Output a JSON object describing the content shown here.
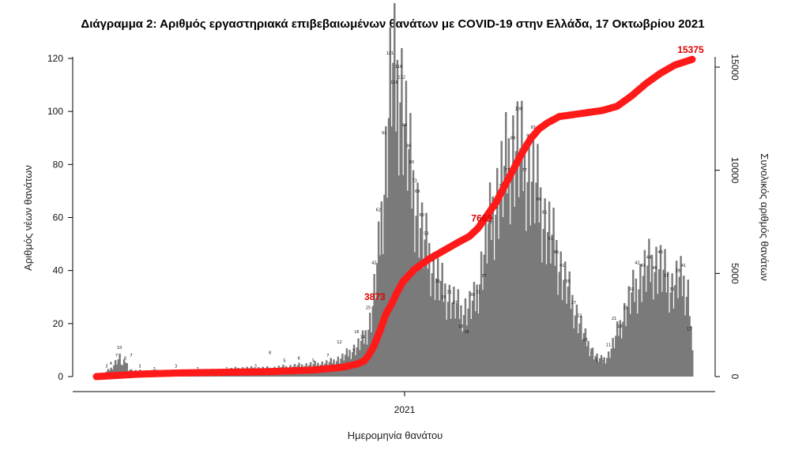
{
  "chart_data": {
    "type": "bar+line",
    "title": "Διάγραμμα 2: Αριθμός εργαστηριακά επιβεβαιωμένων θανάτων με COVID-19 στην Ελλάδα, 17 Οκτωβρίου 2021",
    "xlabel": "Ημερομηνία θανάτου",
    "ylabel": "Αριθμός νέων θανάτων",
    "y2label": "Συνολικός αριθμός θανάτων",
    "x_tick_labels": [
      "2021"
    ],
    "ylim": [
      0,
      125
    ],
    "y_ticks": [
      0,
      20,
      40,
      60,
      80,
      100,
      120
    ],
    "y2lim": [
      0,
      15500
    ],
    "y2_ticks": [
      0,
      5000,
      10000,
      15000
    ],
    "bar_color": "#7a7a7a",
    "line_color": "#ff1a1a",
    "daily_anchors": [
      [
        0,
        1
      ],
      [
        5,
        1
      ],
      [
        10,
        3
      ],
      [
        14,
        6
      ],
      [
        16,
        7
      ],
      [
        18,
        4
      ],
      [
        20,
        6
      ],
      [
        22,
        3
      ],
      [
        25,
        2
      ],
      [
        30,
        2
      ],
      [
        40,
        2
      ],
      [
        60,
        2
      ],
      [
        80,
        2
      ],
      [
        100,
        3
      ],
      [
        120,
        3
      ],
      [
        140,
        4
      ],
      [
        160,
        5
      ],
      [
        170,
        7
      ],
      [
        180,
        11
      ],
      [
        185,
        14
      ],
      [
        190,
        22
      ],
      [
        195,
        45
      ],
      [
        200,
        80
      ],
      [
        204,
        115
      ],
      [
        207,
        105
      ],
      [
        210,
        110
      ],
      [
        214,
        90
      ],
      [
        218,
        72
      ],
      [
        222,
        62
      ],
      [
        226,
        50
      ],
      [
        230,
        45
      ],
      [
        234,
        38
      ],
      [
        240,
        32
      ],
      [
        246,
        28
      ],
      [
        252,
        24
      ],
      [
        258,
        26
      ],
      [
        262,
        28
      ],
      [
        266,
        40
      ],
      [
        270,
        52
      ],
      [
        276,
        65
      ],
      [
        282,
        75
      ],
      [
        286,
        82
      ],
      [
        290,
        85
      ],
      [
        294,
        80
      ],
      [
        298,
        78
      ],
      [
        302,
        72
      ],
      [
        306,
        66
      ],
      [
        310,
        57
      ],
      [
        314,
        52
      ],
      [
        318,
        46
      ],
      [
        322,
        38
      ],
      [
        326,
        32
      ],
      [
        330,
        26
      ],
      [
        334,
        20
      ],
      [
        338,
        14
      ],
      [
        342,
        10
      ],
      [
        346,
        7
      ],
      [
        350,
        6
      ],
      [
        354,
        8
      ],
      [
        358,
        13
      ],
      [
        362,
        19
      ],
      [
        366,
        25
      ],
      [
        370,
        30
      ],
      [
        374,
        34
      ],
      [
        378,
        38
      ],
      [
        382,
        40
      ],
      [
        386,
        42
      ],
      [
        390,
        40
      ],
      [
        394,
        36
      ],
      [
        398,
        33
      ],
      [
        402,
        36
      ],
      [
        406,
        34
      ],
      [
        410,
        30
      ],
      [
        412,
        8
      ]
    ],
    "cumulative_anchors": [
      [
        0,
        0
      ],
      [
        30,
        120
      ],
      [
        60,
        180
      ],
      [
        90,
        210
      ],
      [
        120,
        240
      ],
      [
        150,
        320
      ],
      [
        170,
        450
      ],
      [
        180,
        600
      ],
      [
        185,
        750
      ],
      [
        188,
        1000
      ],
      [
        192,
        1500
      ],
      [
        196,
        2200
      ],
      [
        200,
        3000
      ],
      [
        204,
        3500
      ],
      [
        208,
        4100
      ],
      [
        212,
        4600
      ],
      [
        220,
        5200
      ],
      [
        230,
        5700
      ],
      [
        240,
        6100
      ],
      [
        250,
        6500
      ],
      [
        258,
        6800
      ],
      [
        264,
        7200
      ],
      [
        270,
        7800
      ],
      [
        276,
        8400
      ],
      [
        282,
        9200
      ],
      [
        288,
        10000
      ],
      [
        294,
        10800
      ],
      [
        300,
        11500
      ],
      [
        306,
        12000
      ],
      [
        312,
        12300
      ],
      [
        320,
        12600
      ],
      [
        330,
        12700
      ],
      [
        340,
        12800
      ],
      [
        350,
        12900
      ],
      [
        360,
        13100
      ],
      [
        370,
        13600
      ],
      [
        380,
        14200
      ],
      [
        390,
        14700
      ],
      [
        400,
        15100
      ],
      [
        412,
        15375
      ]
    ],
    "bar_labels": [
      {
        "x": 7,
        "value": 3
      },
      {
        "x": 10,
        "value": 4
      },
      {
        "x": 14,
        "value": 7
      },
      {
        "x": 16,
        "value": 10
      },
      {
        "x": 20,
        "value": 6
      },
      {
        "x": 24,
        "value": 7
      },
      {
        "x": 30,
        "value": 3
      },
      {
        "x": 40,
        "value": 2
      },
      {
        "x": 55,
        "value": 3
      },
      {
        "x": 70,
        "value": 2
      },
      {
        "x": 90,
        "value": 2
      },
      {
        "x": 110,
        "value": 3
      },
      {
        "x": 120,
        "value": 8
      },
      {
        "x": 130,
        "value": 5
      },
      {
        "x": 140,
        "value": 6
      },
      {
        "x": 150,
        "value": 5
      },
      {
        "x": 160,
        "value": 7
      },
      {
        "x": 168,
        "value": 12
      },
      {
        "x": 178,
        "value": 9
      },
      {
        "x": 180,
        "value": 16
      },
      {
        "x": 184,
        "value": 14
      },
      {
        "x": 188,
        "value": 25
      },
      {
        "x": 192,
        "value": 42
      },
      {
        "x": 195,
        "value": 62
      },
      {
        "x": 199,
        "value": 91
      },
      {
        "x": 203,
        "value": 121
      },
      {
        "x": 206,
        "value": 110
      },
      {
        "x": 209,
        "value": 116
      },
      {
        "x": 211,
        "value": 112
      },
      {
        "x": 213,
        "value": 94
      },
      {
        "x": 216,
        "value": 86
      },
      {
        "x": 218,
        "value": 80
      },
      {
        "x": 220,
        "value": 73
      },
      {
        "x": 222,
        "value": 69
      },
      {
        "x": 225,
        "value": 60
      },
      {
        "x": 228,
        "value": 53
      },
      {
        "x": 232,
        "value": 43
      },
      {
        "x": 236,
        "value": 35
      },
      {
        "x": 240,
        "value": 29
      },
      {
        "x": 244,
        "value": 31
      },
      {
        "x": 248,
        "value": 27
      },
      {
        "x": 252,
        "value": 18
      },
      {
        "x": 256,
        "value": 16
      },
      {
        "x": 260,
        "value": 30
      },
      {
        "x": 264,
        "value": 31
      },
      {
        "x": 268,
        "value": 37
      },
      {
        "x": 272,
        "value": 57
      },
      {
        "x": 276,
        "value": 63
      },
      {
        "x": 280,
        "value": 71
      },
      {
        "x": 284,
        "value": 77
      },
      {
        "x": 288,
        "value": 89
      },
      {
        "x": 292,
        "value": 100
      },
      {
        "x": 296,
        "value": 77
      },
      {
        "x": 299,
        "value": 90
      },
      {
        "x": 302,
        "value": 93
      },
      {
        "x": 306,
        "value": 66
      },
      {
        "x": 310,
        "value": 61
      },
      {
        "x": 314,
        "value": 51
      },
      {
        "x": 318,
        "value": 46
      },
      {
        "x": 322,
        "value": 41
      },
      {
        "x": 326,
        "value": 35
      },
      {
        "x": 330,
        "value": 27
      },
      {
        "x": 334,
        "value": 22
      },
      {
        "x": 338,
        "value": 13
      },
      {
        "x": 342,
        "value": 9
      },
      {
        "x": 346,
        "value": 5
      },
      {
        "x": 350,
        "value": 5
      },
      {
        "x": 354,
        "value": 11
      },
      {
        "x": 358,
        "value": 21
      },
      {
        "x": 362,
        "value": 18
      },
      {
        "x": 366,
        "value": 25
      },
      {
        "x": 370,
        "value": 32
      },
      {
        "x": 374,
        "value": 42
      },
      {
        "x": 378,
        "value": 41
      },
      {
        "x": 382,
        "value": 44
      },
      {
        "x": 386,
        "value": 40
      },
      {
        "x": 390,
        "value": 46
      },
      {
        "x": 394,
        "value": 37
      },
      {
        "x": 398,
        "value": 32
      },
      {
        "x": 402,
        "value": 39
      },
      {
        "x": 406,
        "value": 41
      },
      {
        "x": 410,
        "value": 17
      }
    ],
    "annotations": [
      {
        "text": "3873",
        "x": 202,
        "value": 3873
      },
      {
        "text": "7669",
        "x": 276,
        "value": 7669
      },
      {
        "text": "15375",
        "x": 412,
        "value": 15375
      }
    ]
  }
}
